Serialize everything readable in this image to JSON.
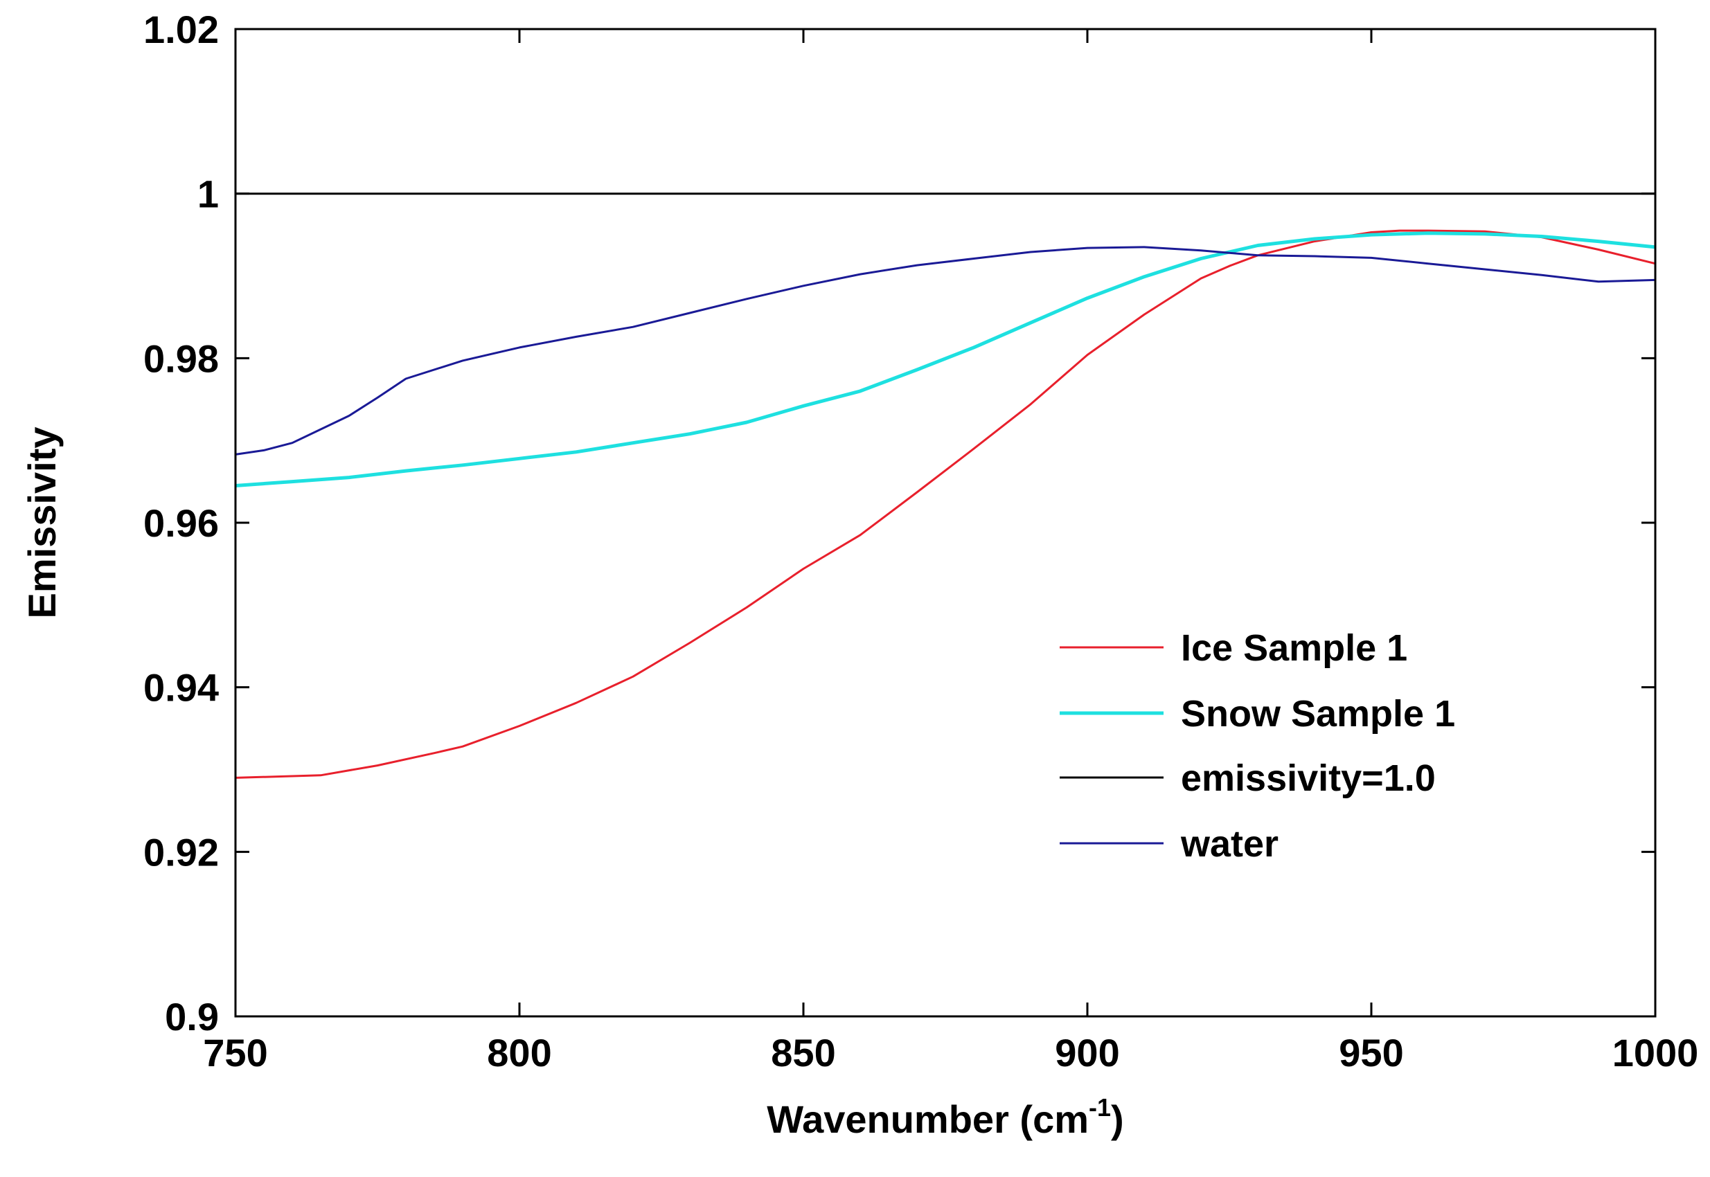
{
  "chart_data": {
    "type": "line",
    "title": "",
    "xlabel": "Wavenumber (cm",
    "xlabel_superscript": "-1",
    "xlabel_suffix": ")",
    "ylabel": "Emissivity",
    "xlim": [
      750,
      1000
    ],
    "ylim": [
      0.9,
      1.02
    ],
    "xticks": [
      750,
      800,
      850,
      900,
      950,
      1000
    ],
    "xtick_labels": [
      "750",
      "800",
      "850",
      "900",
      "950",
      "1000"
    ],
    "yticks": [
      0.9,
      0.92,
      0.94,
      0.96,
      0.98,
      1.0,
      1.02
    ],
    "ytick_labels": [
      "0.9",
      "0.92",
      "0.94",
      "0.96",
      "0.98",
      "1",
      "1.02"
    ],
    "grid": false,
    "legend_position": "center-right",
    "series": [
      {
        "name": "Ice Sample 1",
        "color": "#e8202c",
        "x": [
          750,
          765,
          775,
          785,
          790,
          800,
          810,
          820,
          830,
          840,
          850,
          860,
          870,
          880,
          890,
          900,
          910,
          920,
          925,
          930,
          940,
          950,
          955,
          960,
          970,
          980,
          990,
          1000
        ],
        "y": [
          0.929,
          0.9293,
          0.9305,
          0.932,
          0.9328,
          0.9353,
          0.9381,
          0.9413,
          0.9454,
          0.9497,
          0.9544,
          0.9585,
          0.9637,
          0.969,
          0.9744,
          0.9804,
          0.9853,
          0.9897,
          0.9912,
          0.9925,
          0.9942,
          0.9953,
          0.9955,
          0.9955,
          0.9954,
          0.9947,
          0.9932,
          0.9915
        ]
      },
      {
        "name": "Snow Sample 1",
        "color": "#1ee0e0",
        "x": [
          750,
          760,
          770,
          780,
          790,
          800,
          810,
          820,
          830,
          840,
          850,
          860,
          870,
          880,
          890,
          900,
          910,
          920,
          930,
          940,
          950,
          960,
          970,
          980,
          990,
          1000
        ],
        "y": [
          0.9645,
          0.965,
          0.9655,
          0.9663,
          0.967,
          0.9678,
          0.9686,
          0.9697,
          0.9708,
          0.9722,
          0.9742,
          0.976,
          0.9786,
          0.9813,
          0.9843,
          0.9873,
          0.9899,
          0.9921,
          0.9937,
          0.9945,
          0.995,
          0.9952,
          0.9951,
          0.9948,
          0.9942,
          0.9935
        ]
      },
      {
        "name": "emissivity=1.0",
        "color": "#000000",
        "x": [
          750,
          1000
        ],
        "y": [
          1.0,
          1.0
        ]
      },
      {
        "name": "water",
        "color": "#1a1a96",
        "x": [
          750,
          755,
          760,
          770,
          775,
          780,
          790,
          800,
          810,
          820,
          830,
          840,
          850,
          860,
          870,
          880,
          890,
          900,
          910,
          920,
          930,
          940,
          950,
          960,
          970,
          980,
          990,
          1000
        ],
        "y": [
          0.9683,
          0.9688,
          0.9697,
          0.973,
          0.9752,
          0.9775,
          0.9797,
          0.9813,
          0.9826,
          0.9838,
          0.9855,
          0.9872,
          0.9888,
          0.9902,
          0.9913,
          0.9921,
          0.9929,
          0.9934,
          0.9935,
          0.9931,
          0.9925,
          0.9924,
          0.9922,
          0.9915,
          0.9908,
          0.9901,
          0.9893,
          0.9895
        ]
      }
    ]
  }
}
